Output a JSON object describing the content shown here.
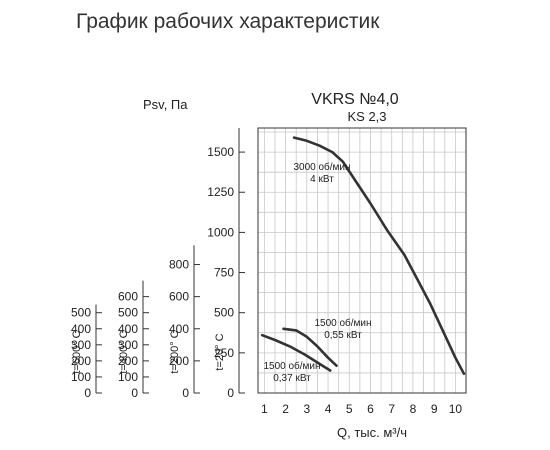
{
  "heading": "График рабочих характеристик",
  "chart_data": {
    "type": "line",
    "title": "VKRS №4,0",
    "subtitle": "KS 2,3",
    "xlabel": "Q, тыс. м³/ч",
    "x_ticks": [
      "1",
      "2",
      "3",
      "4",
      "5",
      "6",
      "7",
      "8",
      "9",
      "10"
    ],
    "xlim": [
      0.7,
      10.5
    ],
    "ylabel": "Psv, Па",
    "ylim": [
      0,
      1650
    ],
    "grid": true,
    "pressure_scales": [
      {
        "label": "t=600° C",
        "max": 550,
        "ticks": [
          "0",
          "100",
          "200",
          "300",
          "400",
          "500"
        ],
        "tick_values": [
          0,
          100,
          200,
          300,
          400,
          500
        ]
      },
      {
        "label": "t=400° C",
        "max": 700,
        "ticks": [
          "0",
          "100",
          "200",
          "300",
          "400",
          "500",
          "600"
        ],
        "tick_values": [
          0,
          100,
          200,
          300,
          400,
          500,
          600
        ]
      },
      {
        "label": "t=200° C",
        "max": 920,
        "ticks": [
          "0",
          "200",
          "400",
          "600",
          "800"
        ],
        "tick_values": [
          0,
          200,
          400,
          600,
          800
        ]
      },
      {
        "label": "t=20° C",
        "max": 1650,
        "ticks": [
          "0",
          "250",
          "500",
          "750",
          "1000",
          "1250",
          "1500"
        ],
        "tick_values": [
          0,
          250,
          500,
          750,
          1000,
          1250,
          1500
        ]
      }
    ],
    "series": [
      {
        "name": "3000 об/мин 4 кВт",
        "label_lines": [
          "3000 об/мин",
          "4 кВт"
        ],
        "x": [
          2.4,
          3.0,
          3.6,
          4.2,
          4.7,
          5.3,
          6.0,
          6.8,
          7.6,
          8.2,
          8.8,
          9.4,
          10.0,
          10.4
        ],
        "y": [
          1590,
          1570,
          1540,
          1500,
          1440,
          1320,
          1180,
          1010,
          860,
          710,
          560,
          390,
          220,
          120
        ]
      },
      {
        "name": "1500 об/мин 0,55 кВт",
        "label_lines": [
          "1500 об/мин",
          "0,55 кВт"
        ],
        "x": [
          1.9,
          2.5,
          3.0,
          3.5,
          4.0,
          4.4
        ],
        "y": [
          400,
          390,
          350,
          290,
          220,
          170
        ]
      },
      {
        "name": "1500 об/мин 0,37 кВт",
        "label_lines": [
          "1500 об/мин",
          "0,37 кВт"
        ],
        "x": [
          0.9,
          1.5,
          2.2,
          2.9,
          3.5,
          4.1
        ],
        "y": [
          360,
          330,
          290,
          240,
          190,
          140
        ]
      }
    ]
  }
}
